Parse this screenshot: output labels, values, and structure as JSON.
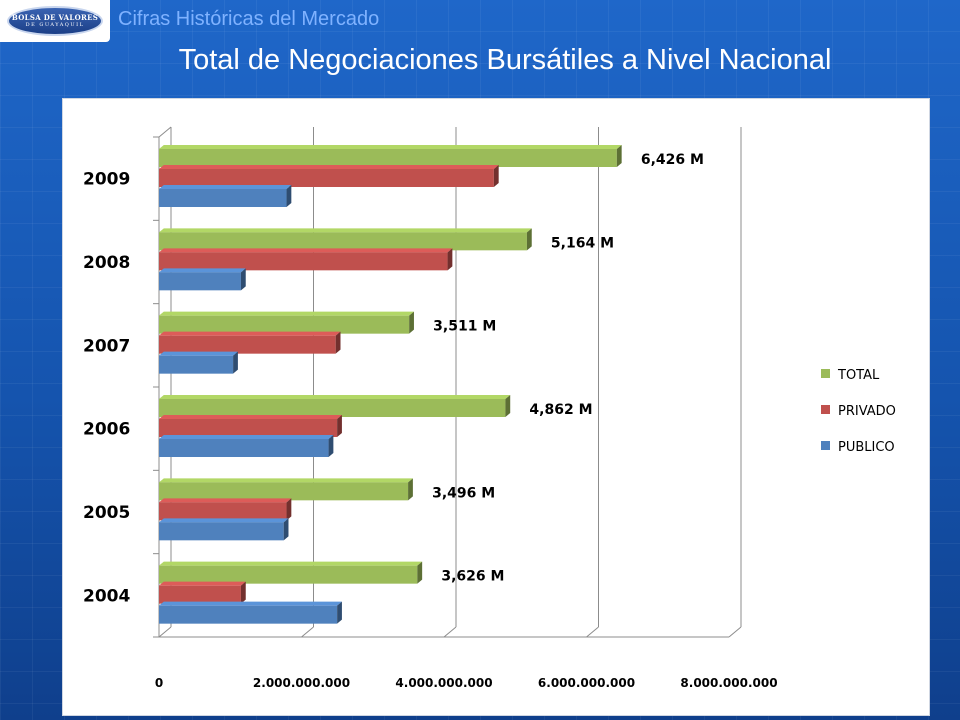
{
  "header": {
    "logo_text": "BOLSA DE VALORES",
    "logo_subtext": "DE GUAYAQUIL",
    "subtitle": "Cifras Históricas del Mercado",
    "title": "Total de Negociaciones Bursátiles a Nivel Nacional"
  },
  "colors": {
    "background": "#1a5ab8",
    "subtitle": "#7fb2ff",
    "total": "#9bbb59",
    "privado": "#c0504d",
    "publico": "#4f81bd"
  },
  "chart_data": {
    "type": "bar",
    "orientation": "horizontal",
    "style": "3d-clustered",
    "categories": [
      "2004",
      "2005",
      "2006",
      "2007",
      "2008",
      "2009"
    ],
    "series": [
      {
        "name": "PUBLICO",
        "values": [
          2500000000,
          1750000000,
          2380000000,
          1040000000,
          1150000000,
          1790000000
        ]
      },
      {
        "name": "PRIVADO",
        "values": [
          1150000000,
          1790000000,
          2500000000,
          2480000000,
          4050000000,
          4700000000
        ]
      },
      {
        "name": "TOTAL",
        "values": [
          3626000000,
          3496000000,
          4862000000,
          3511000000,
          5164000000,
          6426000000
        ]
      }
    ],
    "data_labels": [
      "3,626 M",
      "3,496 M",
      "4,862 M",
      "3,511 M",
      "5,164 M",
      "6,426 M"
    ],
    "x_ticks": [
      "0",
      "2.000.000.000",
      "4.000.000.000",
      "6.000.000.000",
      "8.000.000.000"
    ],
    "xlim": [
      0,
      8000000000
    ],
    "legend": [
      "TOTAL",
      "PRIVADO",
      "PUBLICO"
    ],
    "legend_position": "right",
    "grid": true
  }
}
